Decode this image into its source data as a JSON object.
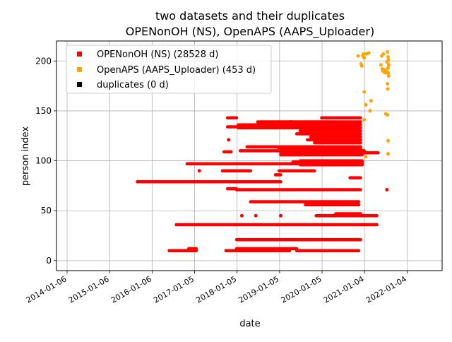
{
  "chart_data": {
    "type": "scatter",
    "title_line1": "two datasets and their duplicates",
    "title_line2": "OPENonOH (NS), OpenAPS (AAPS_Uploader)",
    "xlabel": "date",
    "ylabel": "person index",
    "x_axis": {
      "type": "date",
      "range": [
        "2013-10-07",
        "2022-11-01"
      ],
      "ticks": [
        "2014-01-06",
        "2015-01-06",
        "2016-01-06",
        "2017-01-05",
        "2018-01-05",
        "2019-01-05",
        "2020-01-05",
        "2021-01-04",
        "2022-01-04"
      ]
    },
    "y_axis": {
      "range": [
        -10,
        220
      ],
      "ticks": [
        0,
        50,
        100,
        150,
        200
      ]
    },
    "grid": true,
    "legend_position": "top-left",
    "colors": {
      "ns": "#ff0000",
      "aaps": "#ffa500",
      "dup": "#000000"
    },
    "legend": [
      {
        "name": "OPENonOH (NS) (28528 d)",
        "color": "#ff0000"
      },
      {
        "name": "OpenAPS (AAPS_Uploader) (453 d)",
        "color": "#ffa500"
      },
      {
        "name": "duplicates (0 d)",
        "color": "#000000"
      }
    ],
    "series": [
      {
        "name": "OPENonOH (NS) (28528 d)",
        "color": "#ff0000",
        "segments": [
          {
            "y": 10,
            "start": "2016-06-01",
            "end": "2017-01-20"
          },
          {
            "y": 12,
            "start": "2016-11-15",
            "end": "2017-01-20"
          },
          {
            "y": 10,
            "start": "2017-10-01",
            "end": "2019-04-01"
          },
          {
            "y": 12,
            "start": "2018-01-01",
            "end": "2019-06-01"
          },
          {
            "y": 10,
            "start": "2019-06-01",
            "end": "2020-11-15"
          },
          {
            "y": 21,
            "start": "2018-01-01",
            "end": "2020-12-01"
          },
          {
            "y": 36,
            "start": "2016-08-01",
            "end": "2021-04-20"
          },
          {
            "y": 45,
            "start": "2019-11-15",
            "end": "2021-04-20"
          },
          {
            "y": 47,
            "start": "2020-05-01",
            "end": "2020-12-01"
          },
          {
            "y": 56,
            "start": "2019-08-15",
            "end": "2020-11-15"
          },
          {
            "y": 59,
            "start": "2018-05-01",
            "end": "2020-11-15"
          },
          {
            "y": 71,
            "start": "2018-01-01",
            "end": "2020-12-01"
          },
          {
            "y": 72,
            "start": "2017-10-15",
            "end": "2018-01-01"
          },
          {
            "y": 79,
            "start": "2015-09-01",
            "end": "2019-01-15"
          },
          {
            "y": 83,
            "start": "2020-09-01",
            "end": "2020-12-01"
          },
          {
            "y": 86,
            "start": "2018-12-01",
            "end": "2019-01-15"
          },
          {
            "y": 90,
            "start": "2017-09-01",
            "end": "2018-05-01"
          },
          {
            "y": 90,
            "start": "2019-01-01",
            "end": "2019-11-01"
          },
          {
            "y": 96,
            "start": "2019-07-01",
            "end": "2020-12-15"
          },
          {
            "y": 97,
            "start": "2016-11-01",
            "end": "2020-12-15"
          },
          {
            "y": 99,
            "start": "2019-05-01",
            "end": "2020-12-15"
          },
          {
            "y": 100,
            "start": "2019-07-01",
            "end": "2020-12-15"
          },
          {
            "y": 106,
            "start": "2019-01-15",
            "end": "2020-12-15"
          },
          {
            "y": 108,
            "start": "2019-01-15",
            "end": "2021-05-01"
          },
          {
            "y": 109,
            "start": "2017-09-15",
            "end": "2017-11-15"
          },
          {
            "y": 110,
            "start": "2018-02-01",
            "end": "2021-01-01"
          },
          {
            "y": 112,
            "start": "2019-01-01",
            "end": "2020-12-01"
          },
          {
            "y": 114,
            "start": "2018-04-01",
            "end": "2020-12-01"
          },
          {
            "y": 118,
            "start": "2019-11-01",
            "end": "2020-12-01"
          },
          {
            "y": 121,
            "start": "2019-09-01",
            "end": "2020-12-01"
          },
          {
            "y": 124,
            "start": "2019-10-01",
            "end": "2020-12-01"
          },
          {
            "y": 127,
            "start": "2019-06-01",
            "end": "2020-12-01"
          },
          {
            "y": 130,
            "start": "2019-07-01",
            "end": "2020-12-01"
          },
          {
            "y": 133,
            "start": "2018-01-15",
            "end": "2020-12-01"
          },
          {
            "y": 134,
            "start": "2017-10-15",
            "end": "2018-03-01"
          },
          {
            "y": 136,
            "start": "2018-01-15",
            "end": "2020-12-01"
          },
          {
            "y": 139,
            "start": "2018-07-01",
            "end": "2020-12-01"
          },
          {
            "y": 143,
            "start": "2017-10-15",
            "end": "2018-01-01"
          },
          {
            "y": 143,
            "start": "2020-01-01",
            "end": "2020-12-01"
          }
        ],
        "points": [
          {
            "x": "2017-10-25",
            "y": 121
          },
          {
            "x": "2017-02-15",
            "y": 90
          },
          {
            "x": "2018-02-15",
            "y": 45
          },
          {
            "x": "2018-06-15",
            "y": 45
          },
          {
            "x": "2019-01-15",
            "y": 45
          },
          {
            "x": "2021-07-15",
            "y": 71
          },
          {
            "x": "2019-10-15",
            "y": 137
          },
          {
            "x": "2019-04-15",
            "y": 139
          }
        ]
      },
      {
        "name": "OpenAPS (AAPS_Uploader) (453 d)",
        "color": "#ffa500",
        "points": [
          {
            "x": "2020-11-10",
            "y": 205
          },
          {
            "x": "2020-12-05",
            "y": 197
          },
          {
            "x": "2020-12-12",
            "y": 195
          },
          {
            "x": "2020-12-20",
            "y": 205
          },
          {
            "x": "2020-12-25",
            "y": 207
          },
          {
            "x": "2021-01-01",
            "y": 203
          },
          {
            "x": "2021-01-20",
            "y": 207
          },
          {
            "x": "2021-02-10",
            "y": 208
          },
          {
            "x": "2021-01-01",
            "y": 169
          },
          {
            "x": "2021-01-15",
            "y": 156
          },
          {
            "x": "2021-03-01",
            "y": 160
          },
          {
            "x": "2021-02-20",
            "y": 150
          },
          {
            "x": "2021-01-01",
            "y": 141
          },
          {
            "x": "2021-01-15",
            "y": 104
          },
          {
            "x": "2021-06-01",
            "y": 205
          },
          {
            "x": "2021-06-15",
            "y": 207
          },
          {
            "x": "2021-05-25",
            "y": 196
          },
          {
            "x": "2021-06-05",
            "y": 192
          },
          {
            "x": "2021-06-10",
            "y": 190
          },
          {
            "x": "2021-06-20",
            "y": 189
          },
          {
            "x": "2021-06-28",
            "y": 191
          },
          {
            "x": "2021-07-05",
            "y": 188
          },
          {
            "x": "2021-07-10",
            "y": 190
          },
          {
            "x": "2021-07-15",
            "y": 199
          },
          {
            "x": "2021-07-20",
            "y": 209
          },
          {
            "x": "2021-07-25",
            "y": 204
          },
          {
            "x": "2021-07-28",
            "y": 201
          },
          {
            "x": "2021-07-30",
            "y": 196
          },
          {
            "x": "2021-07-25",
            "y": 193
          },
          {
            "x": "2021-07-27",
            "y": 188
          },
          {
            "x": "2021-07-30",
            "y": 185
          },
          {
            "x": "2021-07-20",
            "y": 177
          },
          {
            "x": "2021-07-22",
            "y": 172
          },
          {
            "x": "2021-07-05",
            "y": 147
          },
          {
            "x": "2021-07-20",
            "y": 146
          },
          {
            "x": "2021-07-25",
            "y": 120
          },
          {
            "x": "2021-07-25",
            "y": 107
          }
        ]
      },
      {
        "name": "duplicates (0 d)",
        "color": "#000000",
        "points": []
      }
    ]
  }
}
